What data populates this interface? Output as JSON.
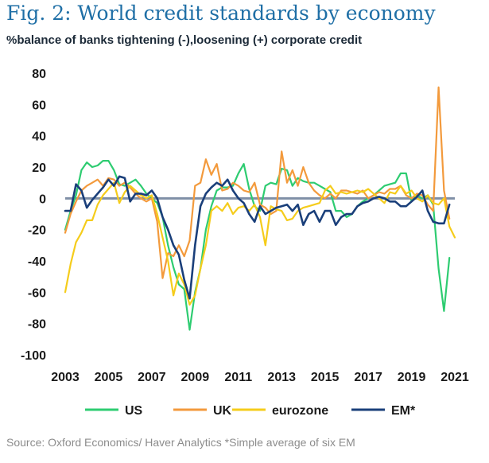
{
  "title": "Fig. 2: World credit standards by economy",
  "subtitle": "%balance of banks tightening (-),loosening (+) corporate credit",
  "source": "Source: Oxford Economics/ Haver Analytics *Simple average of six EM",
  "colors": {
    "US": "#2ecc71",
    "UK": "#f39a3c",
    "eurozone": "#f5cc1b",
    "EM": "#1a3f7a",
    "zero_line": "#7f8fa6"
  },
  "chart_data": {
    "type": "line",
    "title": "Fig. 2: World credit standards by economy",
    "ylabel": "%balance of banks tightening (-),loosening (+) corporate credit",
    "xlabel": "",
    "xlim": [
      2003,
      2021
    ],
    "ylim": [
      -100,
      80
    ],
    "x_ticks": [
      2003,
      2005,
      2007,
      2009,
      2011,
      2013,
      2015,
      2017,
      2019,
      2021
    ],
    "y_ticks": [
      80,
      60,
      40,
      20,
      0,
      -20,
      -40,
      -60,
      -80,
      -100
    ],
    "legend": [
      "US",
      "UK",
      "eurozone",
      "EM*"
    ],
    "legend_position": "bottom",
    "series": [
      {
        "name": "US",
        "x": [
          2003.0,
          2003.25,
          2003.5,
          2003.75,
          2004.0,
          2004.25,
          2004.5,
          2004.75,
          2005.0,
          2005.25,
          2005.5,
          2005.75,
          2006.0,
          2006.25,
          2006.5,
          2006.75,
          2007.0,
          2007.25,
          2007.5,
          2007.75,
          2008.0,
          2008.25,
          2008.5,
          2008.75,
          2009.0,
          2009.25,
          2009.5,
          2009.75,
          2010.0,
          2010.25,
          2010.5,
          2010.75,
          2011.0,
          2011.25,
          2011.5,
          2011.75,
          2012.0,
          2012.25,
          2012.5,
          2012.75,
          2013.0,
          2013.25,
          2013.5,
          2013.75,
          2014.0,
          2014.25,
          2014.5,
          2014.75,
          2015.0,
          2015.25,
          2015.5,
          2015.75,
          2016.0,
          2016.25,
          2016.5,
          2016.75,
          2017.0,
          2017.25,
          2017.5,
          2017.75,
          2018.0,
          2018.25,
          2018.5,
          2018.75,
          2019.0,
          2019.25,
          2019.5,
          2019.75,
          2020.0,
          2020.25,
          2020.5,
          2020.75
        ],
        "values": [
          -20,
          -8,
          2,
          18,
          23,
          20,
          21,
          24,
          24,
          18,
          9,
          8,
          10,
          12,
          8,
          3,
          0,
          -3,
          -12,
          -30,
          -44,
          -55,
          -58,
          -84,
          -60,
          -45,
          -20,
          -5,
          5,
          7,
          7,
          8,
          16,
          22,
          6,
          -5,
          -8,
          8,
          10,
          9,
          19,
          18,
          8,
          13,
          11,
          10,
          10,
          8,
          6,
          4,
          -8,
          -8,
          -12,
          -10,
          -5,
          -2,
          0,
          2,
          5,
          8,
          9,
          10,
          16,
          16,
          -2,
          2,
          0,
          2,
          -4,
          -45,
          -72,
          -38
        ]
      },
      {
        "name": "UK",
        "x": [
          2003.0,
          2003.25,
          2003.5,
          2003.75,
          2004.0,
          2004.25,
          2004.5,
          2004.75,
          2005.0,
          2005.25,
          2005.5,
          2005.75,
          2006.0,
          2006.25,
          2006.5,
          2006.75,
          2007.0,
          2007.25,
          2007.5,
          2007.75,
          2008.0,
          2008.25,
          2008.5,
          2008.75,
          2009.0,
          2009.25,
          2009.5,
          2009.75,
          2010.0,
          2010.25,
          2010.5,
          2010.75,
          2011.0,
          2011.25,
          2011.5,
          2011.75,
          2012.0,
          2012.25,
          2012.5,
          2012.75,
          2013.0,
          2013.25,
          2013.5,
          2013.75,
          2014.0,
          2014.25,
          2014.5,
          2014.75,
          2015.0,
          2015.25,
          2015.5,
          2015.75,
          2016.0,
          2016.25,
          2016.5,
          2016.75,
          2017.0,
          2017.25,
          2017.5,
          2017.75,
          2018.0,
          2018.25,
          2018.5,
          2018.75,
          2019.0,
          2019.25,
          2019.5,
          2019.75,
          2020.0,
          2020.25,
          2020.5,
          2020.75
        ],
        "values": [
          -22,
          -10,
          -2,
          5,
          8,
          10,
          12,
          8,
          13,
          12,
          8,
          10,
          7,
          3,
          0,
          -2,
          0,
          -15,
          -51,
          -35,
          -37,
          -30,
          -37,
          -27,
          8,
          10,
          25,
          15,
          22,
          5,
          6,
          10,
          8,
          5,
          4,
          10,
          -4,
          -6,
          -10,
          -8,
          30,
          10,
          18,
          8,
          20,
          10,
          5,
          2,
          0,
          3,
          0,
          5,
          5,
          4,
          3,
          5,
          0,
          2,
          4,
          3,
          6,
          6,
          8,
          2,
          0,
          3,
          2,
          -4,
          -8,
          71,
          5,
          -13
        ]
      },
      {
        "name": "eurozone",
        "x": [
          2003.0,
          2003.25,
          2003.5,
          2003.75,
          2004.0,
          2004.25,
          2004.5,
          2004.75,
          2005.0,
          2005.25,
          2005.5,
          2005.75,
          2006.0,
          2006.25,
          2006.5,
          2006.75,
          2007.0,
          2007.25,
          2007.5,
          2007.75,
          2008.0,
          2008.25,
          2008.5,
          2008.75,
          2009.0,
          2009.25,
          2009.5,
          2009.75,
          2010.0,
          2010.25,
          2010.5,
          2010.75,
          2011.0,
          2011.25,
          2011.5,
          2011.75,
          2012.0,
          2012.25,
          2012.5,
          2012.75,
          2013.0,
          2013.25,
          2013.5,
          2013.75,
          2014.0,
          2014.25,
          2014.5,
          2014.75,
          2015.0,
          2015.25,
          2015.5,
          2015.75,
          2016.0,
          2016.25,
          2016.5,
          2016.75,
          2017.0,
          2017.25,
          2017.5,
          2017.75,
          2018.0,
          2018.25,
          2018.5,
          2018.75,
          2019.0,
          2019.25,
          2019.5,
          2019.75,
          2020.0,
          2020.25,
          2020.5,
          2020.75,
          2021.0
        ],
        "values": [
          -60,
          -42,
          -28,
          -22,
          -14,
          -14,
          -4,
          2,
          6,
          10,
          -3,
          4,
          8,
          5,
          2,
          0,
          2,
          -10,
          -25,
          -40,
          -62,
          -48,
          -55,
          -68,
          -62,
          -45,
          -30,
          -8,
          -5,
          -8,
          -3,
          -10,
          -6,
          -5,
          -8,
          -4,
          -12,
          -30,
          -5,
          -7,
          -8,
          -14,
          -13,
          -8,
          -6,
          -5,
          -4,
          -3,
          5,
          8,
          3,
          4,
          3,
          4,
          5,
          4,
          6,
          3,
          0,
          -3,
          4,
          3,
          8,
          3,
          5,
          0,
          -2,
          2,
          -3,
          -4,
          0,
          -18,
          -25
        ]
      },
      {
        "name": "EM*",
        "x": [
          2003.0,
          2003.25,
          2003.5,
          2003.75,
          2004.0,
          2004.25,
          2004.5,
          2004.75,
          2005.0,
          2005.25,
          2005.5,
          2005.75,
          2006.0,
          2006.25,
          2006.5,
          2006.75,
          2007.0,
          2007.25,
          2007.5,
          2007.75,
          2008.0,
          2008.25,
          2008.5,
          2008.75,
          2009.0,
          2009.25,
          2009.5,
          2009.75,
          2010.0,
          2010.25,
          2010.5,
          2010.75,
          2011.0,
          2011.25,
          2011.5,
          2011.75,
          2012.0,
          2012.25,
          2012.5,
          2012.75,
          2013.0,
          2013.25,
          2013.5,
          2013.75,
          2014.0,
          2014.25,
          2014.5,
          2014.75,
          2015.0,
          2015.25,
          2015.5,
          2015.75,
          2016.0,
          2016.25,
          2016.5,
          2016.75,
          2017.0,
          2017.25,
          2017.5,
          2017.75,
          2018.0,
          2018.25,
          2018.5,
          2018.75,
          2019.0,
          2019.25,
          2019.5,
          2019.75,
          2020.0,
          2020.25,
          2020.5,
          2020.75
        ],
        "values": [
          -8,
          -8,
          9,
          5,
          -6,
          -1,
          3,
          7,
          12,
          8,
          14,
          13,
          -2,
          3,
          3,
          2,
          5,
          0,
          -12,
          -20,
          -30,
          -36,
          -52,
          -64,
          -30,
          -5,
          3,
          7,
          10,
          8,
          12,
          5,
          0,
          -3,
          -10,
          -15,
          -5,
          -10,
          -8,
          -6,
          -5,
          -4,
          -8,
          -4,
          -17,
          -10,
          -8,
          -15,
          -8,
          -8,
          -17,
          -12,
          -10,
          -10,
          -5,
          -3,
          -2,
          0,
          1,
          0,
          -2,
          -2,
          -5,
          -5,
          -2,
          1,
          5,
          -8,
          -15,
          -16,
          -16,
          -4
        ]
      }
    ]
  }
}
